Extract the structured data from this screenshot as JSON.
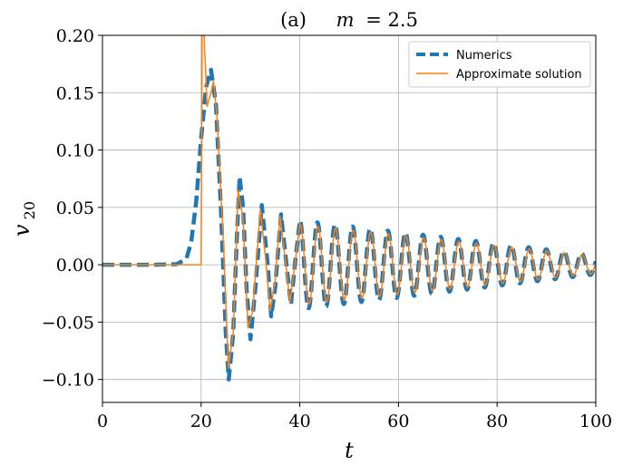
{
  "chart_data": {
    "type": "line",
    "title": "(a)    m = 2.5",
    "title_parts": {
      "prefix": "(a)",
      "var": "m",
      "value": "= 2.5"
    },
    "xlabel": "t",
    "ylabel": {
      "base": "v",
      "sub": "20"
    },
    "xlim": [
      0,
      100
    ],
    "ylim": [
      -0.12,
      0.2
    ],
    "xticks": [
      0,
      20,
      40,
      60,
      80,
      100
    ],
    "xtick_labels": [
      "0",
      "20",
      "40",
      "60",
      "80",
      "100"
    ],
    "yticks": [
      -0.1,
      -0.05,
      0.0,
      0.05,
      0.1,
      0.15,
      0.2
    ],
    "ytick_labels": [
      "−0.10",
      "−0.05",
      "0.00",
      "0.05",
      "0.10",
      "0.15",
      "0.20"
    ],
    "grid": true,
    "legend_position": "top-right",
    "series": [
      {
        "name": "Numerics",
        "color": "#1f77b4",
        "style": "dashed",
        "points": [
          [
            0,
            0
          ],
          [
            10,
            0
          ],
          [
            15,
            0.0005
          ],
          [
            17,
            0.005
          ],
          [
            18,
            0.02
          ],
          [
            19,
            0.055
          ],
          [
            20,
            0.11
          ],
          [
            21,
            0.155
          ],
          [
            22,
            0.17
          ],
          [
            23,
            0.14
          ],
          [
            24,
            0.05
          ],
          [
            25,
            -0.06
          ],
          [
            25.6,
            -0.1
          ],
          [
            26.5,
            -0.06
          ],
          [
            27.2,
            0.02
          ],
          [
            27.8,
            0.077
          ],
          [
            28.5,
            0.05
          ],
          [
            29.2,
            -0.02
          ],
          [
            30,
            -0.065
          ],
          [
            31,
            -0.02
          ],
          [
            32.3,
            0.052
          ],
          [
            33.5,
            0.0
          ],
          [
            34.2,
            -0.045
          ],
          [
            35,
            -0.02
          ],
          [
            36.2,
            0.044
          ],
          [
            37.3,
            0.0
          ],
          [
            38.2,
            -0.035
          ],
          [
            39,
            0.0
          ],
          [
            40,
            0.038
          ]
        ]
      },
      {
        "name": "Approximate solution",
        "color": "#ff7f0e",
        "style": "solid",
        "points": [
          [
            0,
            0
          ],
          [
            20,
            0
          ],
          [
            20.2,
            0.2
          ],
          [
            20.6,
            0.2
          ],
          [
            21.2,
            0.138
          ],
          [
            22,
            0.15
          ],
          [
            22.5,
            0.16
          ],
          [
            23.2,
            0.13
          ],
          [
            24.5,
            0.02
          ],
          [
            25.5,
            -0.09
          ],
          [
            26.5,
            -0.06
          ],
          [
            27.5,
            0.065
          ],
          [
            28.5,
            0.04
          ],
          [
            29.5,
            -0.055
          ],
          [
            30.5,
            -0.04
          ],
          [
            32,
            0.048
          ],
          [
            33.2,
            0.0
          ],
          [
            34,
            -0.04
          ],
          [
            35,
            -0.015
          ],
          [
            36,
            0.042
          ],
          [
            37.2,
            0.0
          ],
          [
            38,
            -0.033
          ],
          [
            39,
            0.0
          ],
          [
            40,
            0.036
          ]
        ]
      }
    ],
    "tail": {
      "t_start": 40,
      "t_end": 100,
      "period": 3.57,
      "amp_start": 0.037,
      "amp_end": 0.008
    }
  }
}
